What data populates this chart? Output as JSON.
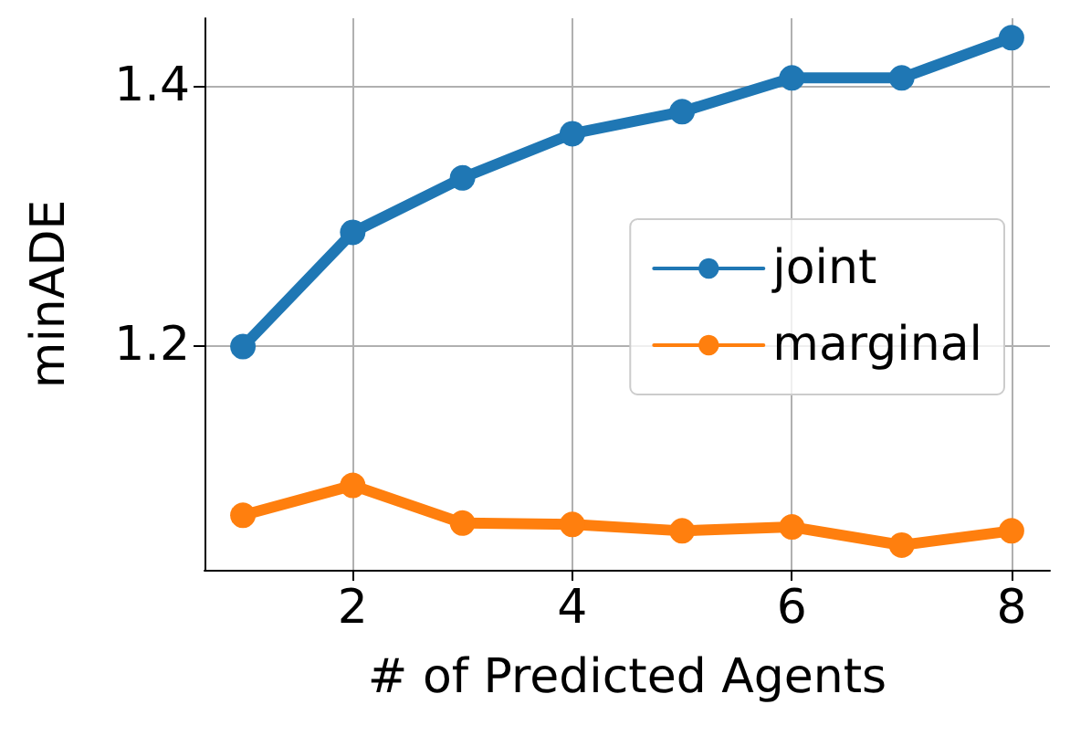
{
  "chart_data": {
    "type": "line",
    "xlabel": "# of Predicted Agents",
    "ylabel": "minADE",
    "x": [
      1,
      2,
      3,
      4,
      5,
      6,
      7,
      8
    ],
    "series": [
      {
        "name": "joint",
        "color": "#1f77b4",
        "values": [
          1.199,
          1.287,
          1.329,
          1.363,
          1.38,
          1.406,
          1.406,
          1.437
        ]
      },
      {
        "name": "marginal",
        "color": "#ff7f0e",
        "values": [
          1.069,
          1.092,
          1.063,
          1.062,
          1.057,
          1.06,
          1.046,
          1.057
        ]
      }
    ],
    "xlim": [
      0.65,
      8.35
    ],
    "xticks": [
      2,
      4,
      6,
      8
    ],
    "ylim": [
      1.027,
      1.452
    ],
    "yticks": [
      1.2,
      1.4
    ],
    "grid": true,
    "legend": "right",
    "marker": "circle",
    "line_style": "solid"
  }
}
